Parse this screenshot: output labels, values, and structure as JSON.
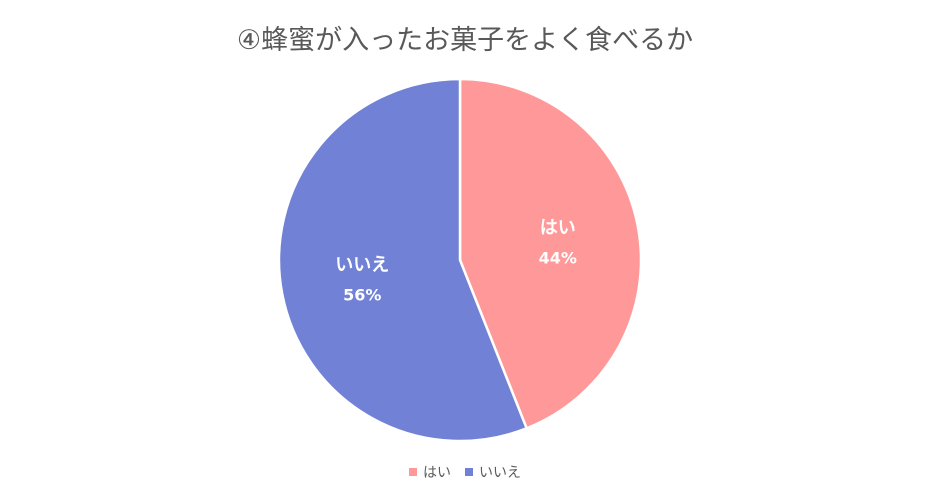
{
  "chart_data": {
    "type": "pie",
    "title": "④蜂蜜が入ったお菓子をよく食べるか",
    "categories": [
      "はい",
      "いいえ"
    ],
    "values": [
      44,
      56
    ],
    "data_labels": [
      "44%",
      "56%"
    ],
    "colors": [
      "#FF9999",
      "#7182D6"
    ],
    "legend": "bottom",
    "start_angle_deg": 0,
    "direction": "clockwise"
  }
}
